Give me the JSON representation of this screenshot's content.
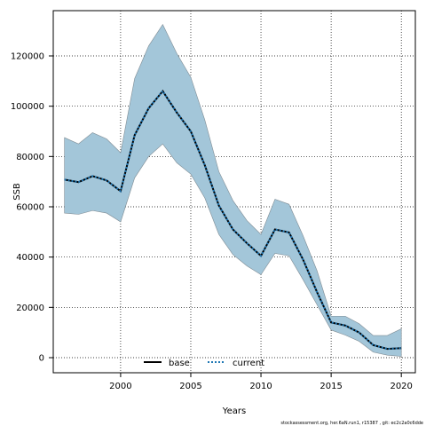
{
  "chart_data": {
    "type": "line",
    "xlabel": "Years",
    "ylabel": "SSB",
    "xlim": [
      1995.2,
      2021.0
    ],
    "ylim": [
      -6000,
      138000
    ],
    "x_ticks": [
      2000,
      2005,
      2010,
      2015,
      2020
    ],
    "y_ticks": [
      0,
      20000,
      40000,
      60000,
      80000,
      100000,
      120000
    ],
    "grid": true,
    "legend_position": "bottom-center",
    "x": [
      1996,
      1997,
      1998,
      1999,
      2000,
      2001,
      2002,
      2003,
      2004,
      2005,
      2006,
      2007,
      2008,
      2009,
      2010,
      2011,
      2012,
      2013,
      2014,
      2015,
      2016,
      2017,
      2018,
      2019,
      2020
    ],
    "series": [
      {
        "name": "base",
        "style": "solid",
        "color": "#000000",
        "values": [
          70800,
          69800,
          72200,
          70500,
          66200,
          88500,
          99200,
          106000,
          97500,
          90000,
          76500,
          60500,
          51000,
          45500,
          40500,
          51000,
          49800,
          39000,
          26000,
          14000,
          12800,
          10000,
          5000,
          3500,
          3800
        ]
      },
      {
        "name": "current",
        "style": "dotted",
        "color": "#1f77b4",
        "values": [
          70800,
          69800,
          72200,
          70500,
          66200,
          88500,
          99200,
          106000,
          97500,
          90000,
          76500,
          60500,
          51000,
          45500,
          40500,
          51000,
          49800,
          39000,
          26000,
          14000,
          12800,
          10000,
          5000,
          3500,
          3800
        ]
      }
    ],
    "confidence_band": {
      "color": "#a3c6d9",
      "upper": [
        87500,
        85000,
        89500,
        87000,
        81500,
        111000,
        124000,
        132500,
        121000,
        111500,
        94500,
        74000,
        62500,
        54500,
        49000,
        63000,
        61000,
        48500,
        34500,
        16500,
        16500,
        13500,
        8800,
        8800,
        11500
      ],
      "lower": [
        57500,
        57000,
        58500,
        57500,
        54000,
        71500,
        80000,
        85000,
        77500,
        73000,
        63500,
        49000,
        41000,
        36500,
        33000,
        41500,
        40500,
        31000,
        21000,
        11000,
        9000,
        6500,
        2200,
        1000,
        500
      ]
    }
  },
  "footer": "stockassessment.org, her.6aN.run1, r15387 , git: ec2c2a0c6dde"
}
